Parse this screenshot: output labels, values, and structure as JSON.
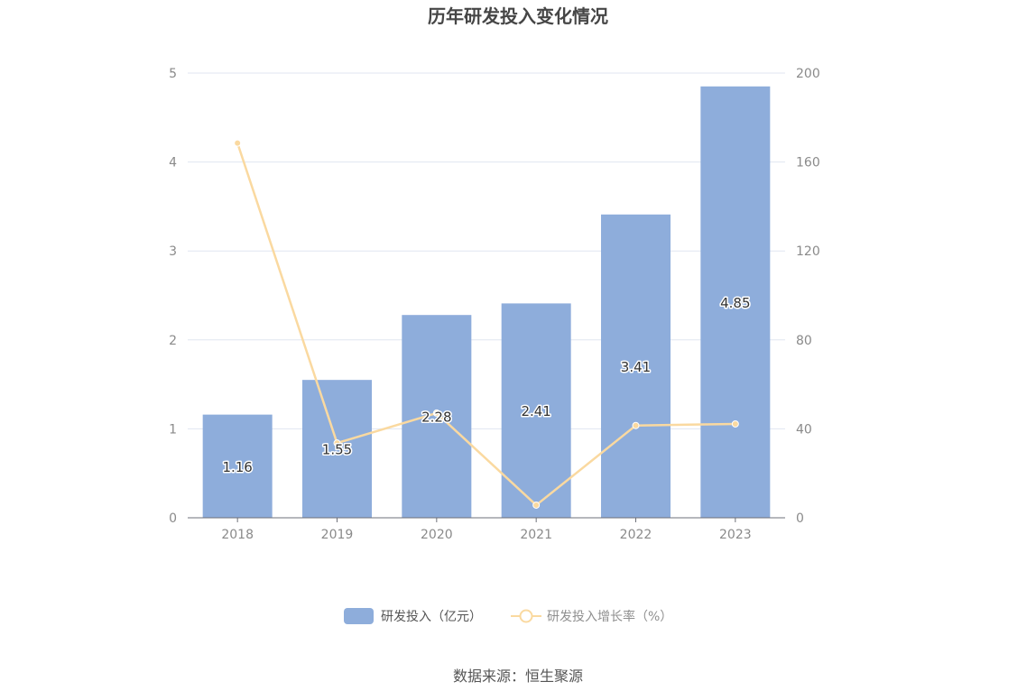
{
  "chart_data": {
    "type": "bar",
    "title": "历年研发投入变化情况",
    "categories": [
      "2018",
      "2019",
      "2020",
      "2021",
      "2022",
      "2023"
    ],
    "series": [
      {
        "name": "研发投入（亿元）",
        "type": "bar",
        "axis": "left",
        "values": [
          1.16,
          1.55,
          2.28,
          2.41,
          3.41,
          4.85
        ],
        "labels": [
          "1.16",
          "1.55",
          "2.28",
          "2.41",
          "3.41",
          "4.85"
        ],
        "color": "#8eaddb"
      },
      {
        "name": "研发投入增长率（%）",
        "type": "line",
        "axis": "right",
        "values": [
          168.5,
          33.6,
          47.1,
          5.7,
          41.5,
          42.2
        ],
        "color": "#fad9a0"
      }
    ],
    "y_left": {
      "min": 0,
      "max": 5,
      "ticks": [
        "0",
        "1",
        "2",
        "3",
        "4",
        "5"
      ]
    },
    "y_right": {
      "min": 0,
      "max": 200,
      "ticks": [
        "0",
        "40",
        "80",
        "120",
        "160",
        "200"
      ]
    },
    "grid": true,
    "legend": "bottom-center"
  },
  "source": "数据来源：恒生聚源"
}
